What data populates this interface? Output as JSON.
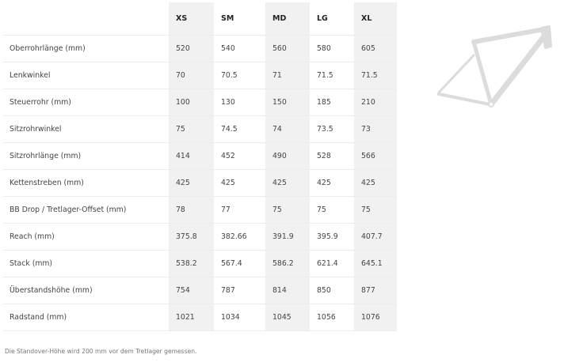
{
  "geometry": {
    "sizes": [
      "XS",
      "SM",
      "MD",
      "LG",
      "XL"
    ],
    "rows": [
      {
        "label": "Oberrohrlänge (mm)",
        "values": [
          "520",
          "540",
          "560",
          "580",
          "605"
        ]
      },
      {
        "label": "Lenkwinkel",
        "values": [
          "70",
          "70.5",
          "71",
          "71.5",
          "71.5"
        ]
      },
      {
        "label": "Steuerrohr (mm)",
        "values": [
          "100",
          "130",
          "150",
          "185",
          "210"
        ]
      },
      {
        "label": "Sitzrohrwinkel",
        "values": [
          "75",
          "74.5",
          "74",
          "73.5",
          "73"
        ]
      },
      {
        "label": "Sitzrohrlänge (mm)",
        "values": [
          "414",
          "452",
          "490",
          "528",
          "566"
        ]
      },
      {
        "label": "Kettenstreben (mm)",
        "values": [
          "425",
          "425",
          "425",
          "425",
          "425"
        ]
      },
      {
        "label": "BB Drop / Tretlager-Offset (mm)",
        "values": [
          "78",
          "77",
          "75",
          "75",
          "75"
        ]
      },
      {
        "label": "Reach (mm)",
        "values": [
          "375.8",
          "382.66",
          "391.9",
          "395.9",
          "407.7"
        ]
      },
      {
        "label": "Stack (mm)",
        "values": [
          "538.2",
          "567.4",
          "586.2",
          "621.4",
          "645.1"
        ]
      },
      {
        "label": "Überstandshöhe (mm)",
        "values": [
          "754",
          "787",
          "814",
          "850",
          "877"
        ]
      },
      {
        "label": "Radstand (mm)",
        "values": [
          "1021",
          "1034",
          "1045",
          "1056",
          "1076"
        ]
      }
    ]
  },
  "footnote": "Die Standover-Höhe wird 200 mm vor dem Tretlager gemessen.",
  "colors": {
    "shaded_column": "#f1f1f1",
    "frame": "#dcdcdc"
  },
  "illustration": "bike-frame-icon"
}
